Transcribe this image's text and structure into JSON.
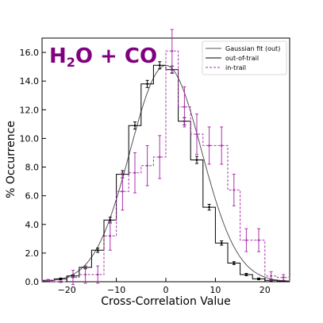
{
  "chart_data": {
    "type": "histogram",
    "title": {
      "main": "H",
      "sub": "2",
      "rest": "O + CO",
      "color": "#800080"
    },
    "xlabel": "Cross-Correlation Value",
    "ylabel": "% Occurrence",
    "xlim": [
      -25,
      25
    ],
    "ylim": [
      0,
      17
    ],
    "xticks": [
      -20,
      -10,
      0,
      10,
      20
    ],
    "xtick_labels": [
      "−20",
      "−10",
      "0",
      "10",
      "20"
    ],
    "yticks": [
      0,
      2,
      4,
      6,
      8,
      10,
      12,
      14,
      16
    ],
    "ytick_labels": [
      "0.0",
      "2.0",
      "4.0",
      "6.0",
      "8.0",
      "10.0",
      "12.0",
      "14.0",
      "16.0"
    ],
    "grid": false,
    "legend": {
      "placement": "top-right",
      "entries": [
        "Gaussian fit (out)",
        "out-of-trail",
        "in-trail"
      ]
    },
    "bin_edges": [
      -25,
      -22.5,
      -20,
      -17.5,
      -15,
      -12.5,
      -10,
      -7.5,
      -5,
      -2.5,
      0,
      2.5,
      5,
      7.5,
      10,
      12.5,
      15,
      17.5,
      20,
      22.5,
      25
    ],
    "bin_centers": [
      -23.75,
      -21.25,
      -18.75,
      -16.25,
      -13.75,
      -11.25,
      -8.75,
      -6.25,
      -3.75,
      -1.25,
      1.25,
      3.75,
      6.25,
      8.75,
      11.25,
      13.75,
      16.25,
      18.75,
      21.25,
      23.75
    ],
    "series": [
      {
        "name": "Gaussian fit (out)",
        "kind": "curve",
        "color": "#555555",
        "mean": 0,
        "sigma": 7.2,
        "amplitude": 15.1
      },
      {
        "name": "out-of-trail",
        "kind": "step",
        "color": "#000000",
        "values": [
          0.1,
          0.2,
          0.4,
          1.0,
          2.2,
          4.3,
          7.5,
          10.9,
          13.8,
          15.1,
          14.8,
          11.2,
          8.5,
          5.2,
          2.7,
          1.3,
          0.5,
          0.2,
          0.1,
          0.05
        ],
        "errors": [
          0.05,
          0.06,
          0.08,
          0.1,
          0.15,
          0.2,
          0.25,
          0.25,
          0.25,
          0.25,
          0.25,
          0.25,
          0.25,
          0.2,
          0.15,
          0.1,
          0.08,
          0.06,
          0.05,
          0.04
        ]
      },
      {
        "name": "in-trail",
        "kind": "step-dashed",
        "color": "#aa33aa",
        "values": [
          0.1,
          0.0,
          0.3,
          0.5,
          0.5,
          3.2,
          6.3,
          7.6,
          8.1,
          8.7,
          16.1,
          12.2,
          10.3,
          9.5,
          9.5,
          6.4,
          2.9,
          2.9,
          0.4,
          0.3
        ],
        "errors": [
          0.05,
          0.05,
          0.5,
          0.6,
          0.6,
          1.0,
          1.3,
          1.4,
          1.4,
          1.5,
          1.5,
          1.4,
          1.4,
          1.3,
          1.3,
          1.1,
          0.8,
          0.8,
          0.3,
          0.2
        ]
      }
    ]
  }
}
